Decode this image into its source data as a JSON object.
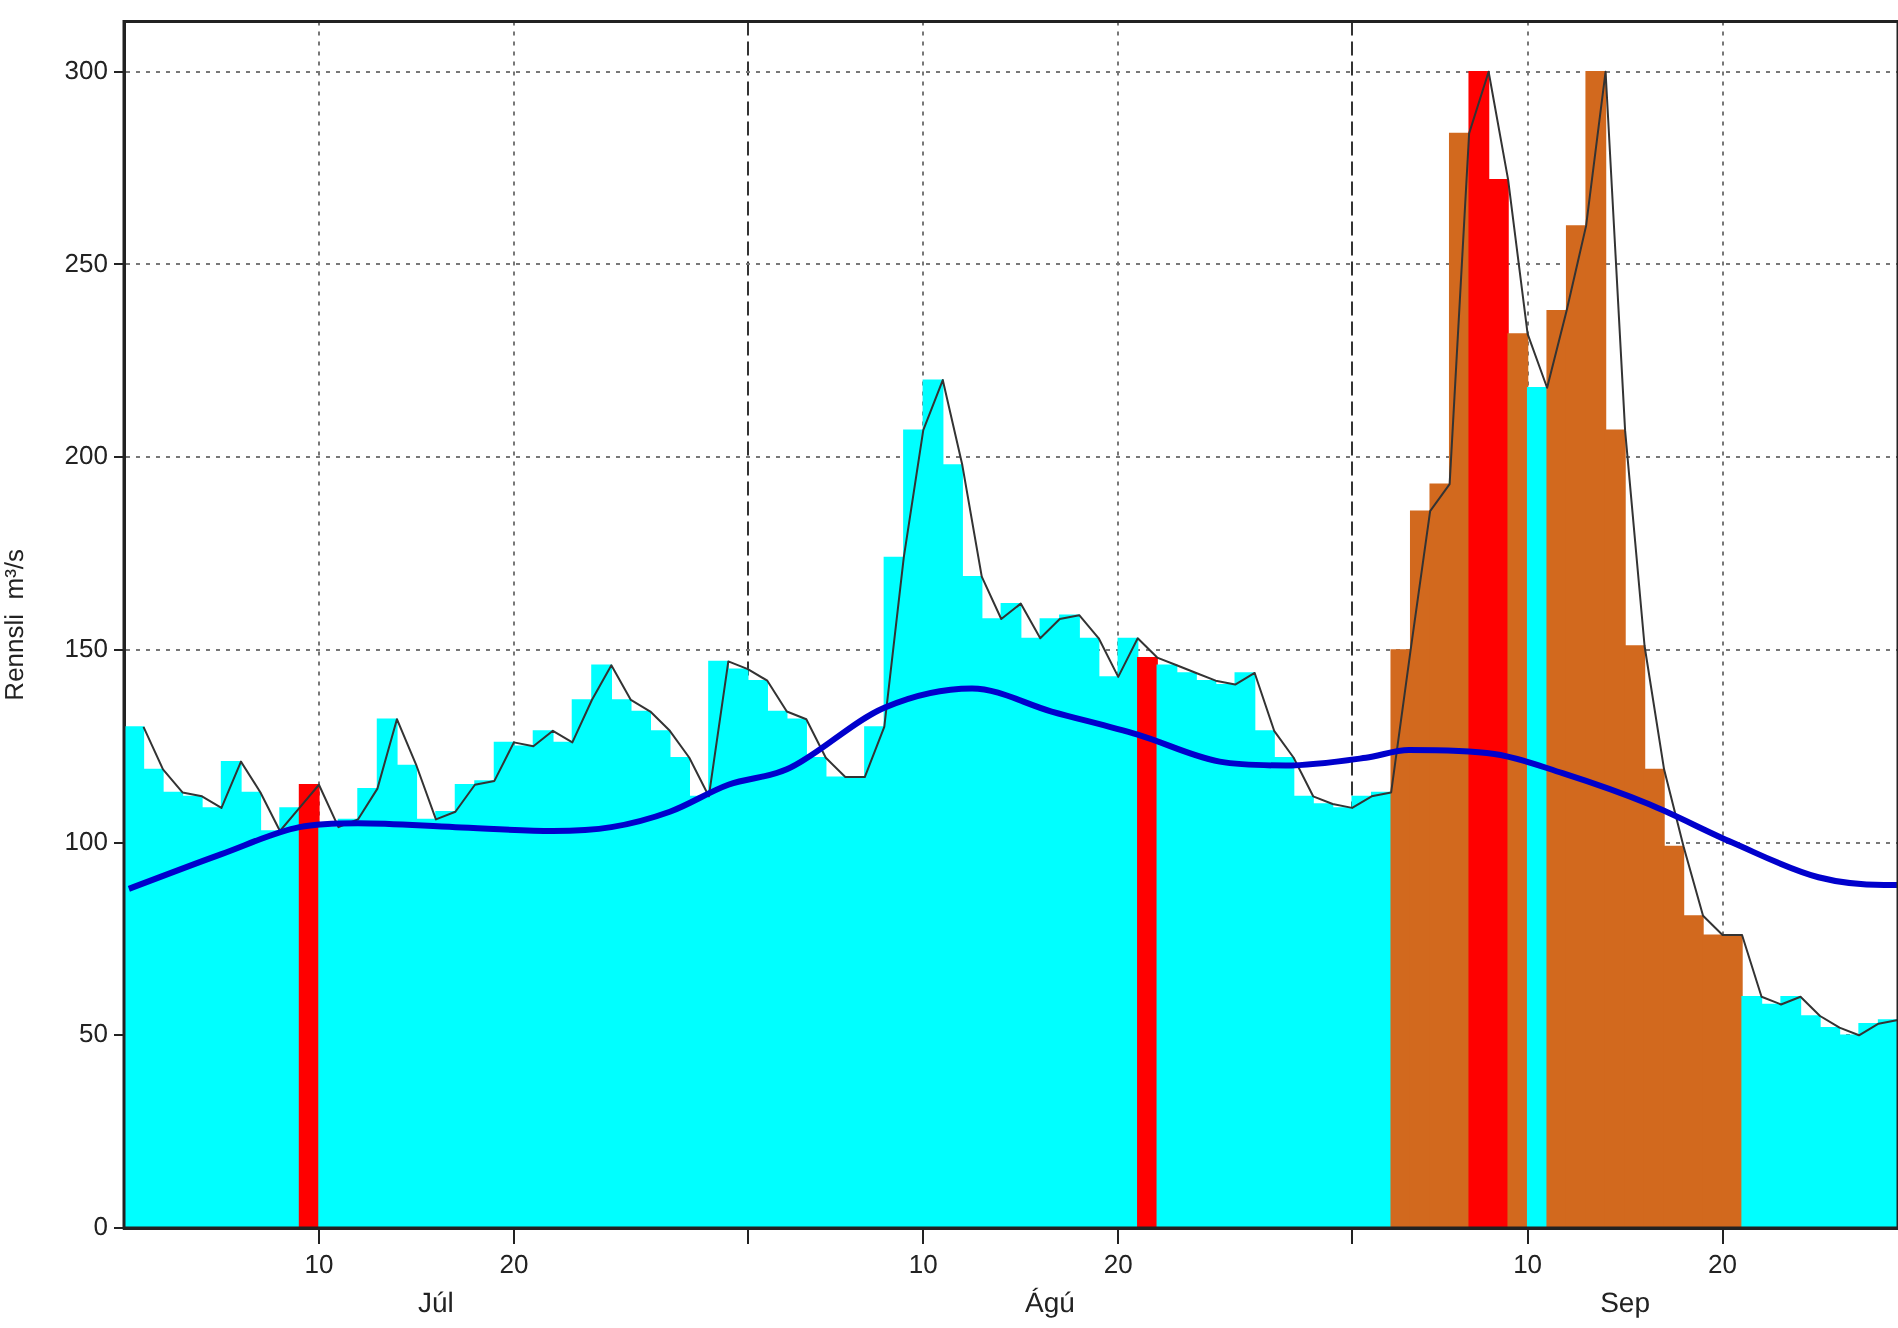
{
  "chart_data": {
    "type": "bar",
    "ylabel": "Rennsli  m³/s",
    "x": [
      "--06-30T12:00",
      "--07-01T12:00",
      "--07-02T12:00",
      "--07-03T12:00",
      "--07-04T12:00",
      "--07-05T12:00",
      "--07-06T12:00",
      "--07-07T12:00",
      "--07-08T12:00",
      "--07-09T12:00",
      "--07-10T12:00",
      "--07-11T12:00",
      "--07-12T12:00",
      "--07-13T12:00",
      "--07-14T12:00",
      "--07-15T12:00",
      "--07-16T12:00",
      "--07-17T12:00",
      "--07-18T12:00",
      "--07-19T12:00",
      "--07-20T12:00",
      "--07-21T12:00",
      "--07-22T12:00",
      "--07-23T12:00",
      "--07-24T12:00",
      "--07-25T12:00",
      "--07-26T12:00",
      "--07-27T12:00",
      "--07-28T12:00",
      "--07-29T12:00",
      "--07-30T12:00",
      "--07-31T12:00",
      "--08-01T12:00",
      "--08-02T12:00",
      "--08-03T12:00",
      "--08-04T12:00",
      "--08-05T12:00",
      "--08-06T12:00",
      "--08-07T12:00",
      "--08-08T12:00",
      "--08-09T12:00",
      "--08-10T12:00",
      "--08-11T12:00",
      "--08-12T12:00",
      "--08-13T12:00",
      "--08-14T12:00",
      "--08-15T12:00",
      "--08-16T12:00",
      "--08-17T12:00",
      "--08-18T12:00",
      "--08-19T12:00",
      "--08-20T12:00",
      "--08-21T12:00",
      "--08-22T12:00",
      "--08-23T12:00",
      "--08-24T12:00",
      "--08-25T12:00",
      "--08-26T12:00",
      "--08-27T12:00",
      "--08-28T12:00",
      "--08-29T12:00",
      "--08-30T12:00",
      "--08-31T12:00",
      "--09-01T12:00",
      "--09-02T12:00",
      "--09-03T12:00",
      "--09-04T12:00",
      "--09-05T12:00",
      "--09-06T12:00",
      "--09-07T12:00",
      "--09-08T12:00",
      "--09-09T12:00",
      "--09-10T12:00",
      "--09-11T12:00",
      "--09-12T12:00",
      "--09-13T12:00",
      "--09-14T12:00",
      "--09-15T12:00",
      "--09-16T12:00",
      "--09-17T12:00",
      "--09-18T12:00",
      "--09-19T12:00",
      "--09-20T12:00",
      "--09-21T12:00",
      "--09-22T12:00",
      "--09-23T12:00",
      "--09-24T12:00",
      "--09-25T12:00",
      "--09-26T12:00",
      "--09-27T12:00",
      "--09-28T12:00"
    ],
    "series": [
      {
        "values": [
          130,
          119,
          113,
          112,
          109,
          121,
          113,
          103,
          109,
          115,
          104,
          106,
          114,
          132,
          120,
          106,
          108,
          115,
          116,
          126,
          125,
          129,
          126,
          137,
          146,
          137,
          134,
          129,
          122,
          112,
          147,
          145,
          142,
          134,
          132,
          122,
          117,
          117,
          130,
          174,
          207,
          220,
          198,
          169,
          158,
          162,
          153,
          158,
          159,
          153,
          143,
          153,
          148,
          146,
          144,
          142,
          141,
          144,
          129,
          122,
          112,
          110,
          109,
          112,
          113,
          150,
          186,
          193,
          284,
          300,
          272,
          232,
          218,
          238,
          260,
          300,
          207,
          151,
          119,
          99,
          81,
          76,
          76,
          60,
          58,
          60,
          55,
          52,
          50,
          53,
          54
        ],
        "colors": [
          "#00ffff",
          "#00ffff",
          "#00ffff",
          "#00ffff",
          "#00ffff",
          "#00ffff",
          "#00ffff",
          "#00ffff",
          "#00ffff",
          "#ff0000",
          "#00ffff",
          "#00ffff",
          "#00ffff",
          "#00ffff",
          "#00ffff",
          "#00ffff",
          "#00ffff",
          "#00ffff",
          "#00ffff",
          "#00ffff",
          "#00ffff",
          "#00ffff",
          "#00ffff",
          "#00ffff",
          "#00ffff",
          "#00ffff",
          "#00ffff",
          "#00ffff",
          "#00ffff",
          "#00ffff",
          "#00ffff",
          "#00ffff",
          "#00ffff",
          "#00ffff",
          "#00ffff",
          "#00ffff",
          "#00ffff",
          "#00ffff",
          "#00ffff",
          "#00ffff",
          "#00ffff",
          "#00ffff",
          "#00ffff",
          "#00ffff",
          "#00ffff",
          "#00ffff",
          "#00ffff",
          "#00ffff",
          "#00ffff",
          "#00ffff",
          "#00ffff",
          "#00ffff",
          "#ff0000",
          "#00ffff",
          "#00ffff",
          "#00ffff",
          "#00ffff",
          "#00ffff",
          "#00ffff",
          "#00ffff",
          "#00ffff",
          "#00ffff",
          "#00ffff",
          "#00ffff",
          "#00ffff",
          "#d2691e",
          "#d2691e",
          "#d2691e",
          "#d2691e",
          "#ff0000",
          "#ff0000",
          "#d2691e",
          "#00ffff",
          "#d2691e",
          "#d2691e",
          "#d2691e",
          "#d2691e",
          "#d2691e",
          "#d2691e",
          "#d2691e",
          "#d2691e",
          "#d2691e",
          "#d2691e",
          "#00ffff",
          "#00ffff",
          "#00ffff",
          "#00ffff",
          "#00ffff",
          "#00ffff",
          "#00ffff",
          "#00ffff"
        ]
      },
      {
        "type": "line",
        "color": "#333333",
        "x": [
          "--07-01",
          "--07-02",
          "--07-03",
          "--07-04",
          "--07-05",
          "--07-06",
          "--07-07",
          "--07-08",
          "--07-09",
          "--07-10",
          "--07-11",
          "--07-12",
          "--07-13",
          "--07-14",
          "--07-15",
          "--07-16",
          "--07-17",
          "--07-18",
          "--07-19",
          "--07-20",
          "--07-21",
          "--07-22",
          "--07-23",
          "--07-24",
          "--07-25",
          "--07-26",
          "--07-27",
          "--07-28",
          "--07-29",
          "--07-30",
          "--07-31",
          "--08-01",
          "--08-02",
          "--08-03",
          "--08-04",
          "--08-05",
          "--08-06",
          "--08-07",
          "--08-08",
          "--08-09",
          "--08-10",
          "--08-11",
          "--08-12",
          "--08-13",
          "--08-14",
          "--08-15",
          "--08-16",
          "--08-17",
          "--08-18",
          "--08-19",
          "--08-20",
          "--08-21",
          "--08-22",
          "--08-23",
          "--08-24",
          "--08-25",
          "--08-26",
          "--08-27",
          "--08-28",
          "--08-29",
          "--08-30",
          "--08-31",
          "--09-01",
          "--09-02",
          "--09-03",
          "--09-04",
          "--09-05",
          "--09-06",
          "--09-07",
          "--09-08",
          "--09-09",
          "--09-10",
          "--09-11",
          "--09-12",
          "--09-13",
          "--09-14",
          "--09-15",
          "--09-16",
          "--09-17",
          "--09-18",
          "--09-19",
          "--09-20",
          "--09-21",
          "--09-22",
          "--09-23",
          "--09-24",
          "--09-25",
          "--09-26",
          "--09-27",
          "--09-28",
          "--09-29"
        ],
        "values": [
          130,
          119,
          113,
          112,
          109,
          121,
          113,
          103,
          109,
          115,
          104,
          106,
          114,
          132,
          120,
          106,
          108,
          115,
          116,
          126,
          125,
          129,
          126,
          137,
          146,
          137,
          134,
          129,
          122,
          112,
          147,
          145,
          142,
          134,
          132,
          122,
          117,
          117,
          130,
          174,
          207,
          220,
          198,
          169,
          158,
          162,
          153,
          158,
          159,
          153,
          143,
          153,
          148,
          146,
          144,
          142,
          141,
          144,
          129,
          122,
          112,
          110,
          109,
          112,
          113,
          150,
          186,
          193,
          284,
          300,
          272,
          232,
          218,
          238,
          260,
          300,
          207,
          151,
          119,
          99,
          81,
          76,
          76,
          60,
          58,
          60,
          55,
          52,
          50,
          53,
          54
        ]
      },
      {
        "type": "line",
        "color": "#0000cc",
        "x": [
          "--06-30T06:00",
          "--07-05",
          "--07-09",
          "--07-12",
          "--07-17",
          "--07-22",
          "--07-25",
          "--07-28",
          "--07-31",
          "--08-03",
          "--08-08",
          "--08-12T12:00",
          "--08-16T14:00",
          "--08-21",
          "--08-25T05:00",
          "--08-28T14:00",
          "--09-01T17:00",
          "--09-03T22:00",
          "--09-08T07:00",
          "--09-11T19:00",
          "--09-16T05:00",
          "--09-20T12:00",
          "--09-24T22:00",
          "--09-28T07:00",
          "--09-29"
        ],
        "values": [
          88,
          97,
          104,
          105,
          104,
          103,
          104,
          108,
          115,
          119,
          135,
          140,
          134,
          128,
          121,
          120,
          122,
          124,
          123,
          118,
          110,
          100,
          91,
          89,
          89
        ]
      }
    ],
    "xlim": [
      "--06-30",
      "--09-29"
    ],
    "xticks": [
      {
        "value": "--07-10",
        "label": "10"
      },
      {
        "value": "--07-20",
        "label": "20"
      },
      {
        "value": "--08-01",
        "label": null
      },
      {
        "value": "--08-10",
        "label": "10"
      },
      {
        "value": "--08-20",
        "label": "20"
      },
      {
        "value": "--09-01",
        "label": null
      },
      {
        "value": "--09-10",
        "label": "10"
      },
      {
        "value": "--09-20",
        "label": "20"
      }
    ],
    "ylim": [
      0,
      313
    ],
    "yticks": [
      0,
      50,
      100,
      150,
      200,
      250,
      300
    ],
    "annotations": [
      "Júl",
      "Ágú",
      "Sep"
    ],
    "grid": true,
    "marker": "none",
    "line_style": "solid"
  }
}
